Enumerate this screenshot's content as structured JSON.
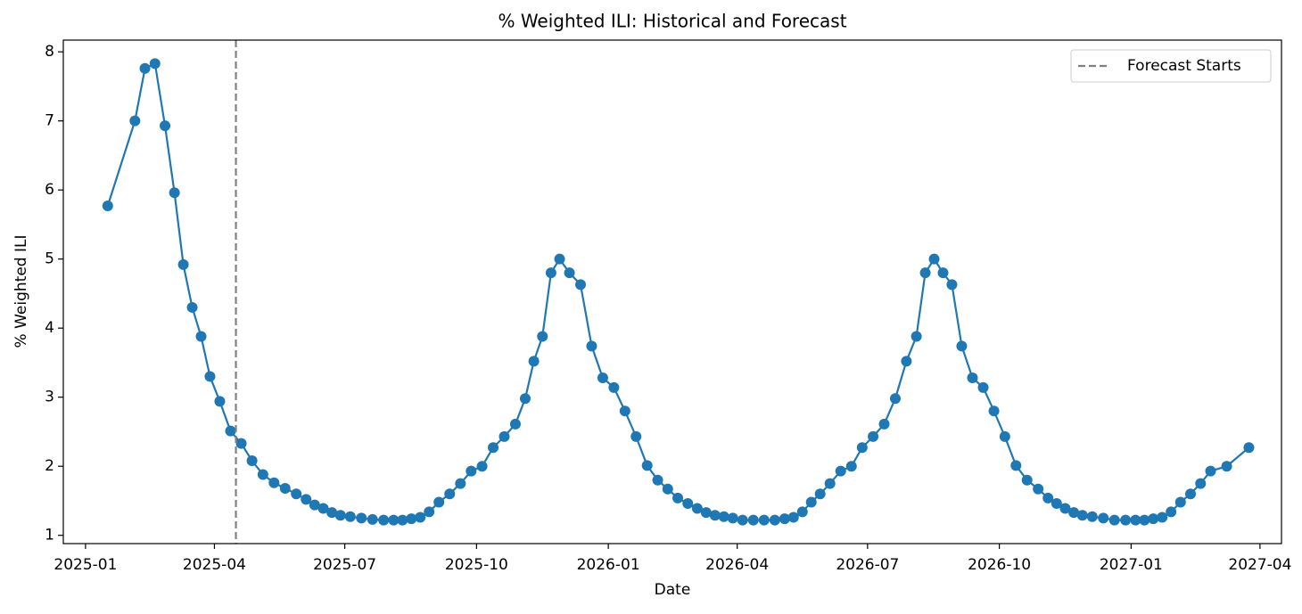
{
  "chart_data": {
    "type": "line",
    "title": "% Weighted ILI: Historical and Forecast",
    "x_label": "Date",
    "y_label": "% Weighted ILI",
    "x": [
      "2025-01",
      "2025-02",
      "2025-02",
      "2025-02",
      "2025-02",
      "2025-03",
      "2025-03",
      "2025-03",
      "2025-03",
      "2025-03",
      "2025-04",
      "2025-04",
      "2025-04",
      "2025-04",
      "2025-05",
      "2025-05",
      "2025-05",
      "2025-05",
      "2025-06",
      "2025-06",
      "2025-06",
      "2025-06",
      "2025-06",
      "2025-07",
      "2025-07",
      "2025-07",
      "2025-07",
      "2025-08",
      "2025-08",
      "2025-08",
      "2025-08",
      "2025-08",
      "2025-09",
      "2025-09",
      "2025-09",
      "2025-09",
      "2025-10",
      "2025-10",
      "2025-10",
      "2025-10",
      "2025-11",
      "2025-11",
      "2025-11",
      "2025-11",
      "2025-11",
      "2025-12",
      "2025-12",
      "2025-12",
      "2025-12",
      "2026-01",
      "2026-01",
      "2026-01",
      "2026-01",
      "2026-02",
      "2026-02",
      "2026-02",
      "2026-02",
      "2026-03",
      "2026-03",
      "2026-03",
      "2026-03",
      "2026-03",
      "2026-04",
      "2026-04",
      "2026-04",
      "2026-04",
      "2026-05",
      "2026-05",
      "2026-05",
      "2026-05",
      "2026-05",
      "2026-06",
      "2026-06",
      "2026-06",
      "2026-06",
      "2026-07",
      "2026-07",
      "2026-07",
      "2026-07",
      "2026-08",
      "2026-08",
      "2026-08",
      "2026-08",
      "2026-08",
      "2026-09",
      "2026-09",
      "2026-09",
      "2026-09",
      "2026-10",
      "2026-10",
      "2026-10",
      "2026-10",
      "2026-11",
      "2026-11",
      "2026-11",
      "2026-11",
      "2026-11",
      "2026-12",
      "2026-12",
      "2026-12",
      "2026-12",
      "2027-01",
      "2027-01",
      "2027-01",
      "2027-01",
      "2027-01",
      "2027-02",
      "2027-02",
      "2027-02",
      "2027-02",
      "2027-03",
      "2027-03"
    ],
    "series": [
      {
        "color": "#1f77b4",
        "values": [
          5.77,
          7.0,
          7.76,
          7.83,
          6.93,
          5.96,
          4.92,
          4.3,
          3.88,
          3.3,
          2.94,
          2.51,
          2.33,
          2.08,
          1.88,
          1.76,
          1.68,
          1.6,
          1.52,
          1.44,
          1.39,
          1.33,
          1.29,
          1.27,
          1.25,
          1.23,
          1.22,
          1.22,
          1.22,
          1.24,
          1.26,
          1.34,
          1.48,
          1.6,
          1.75,
          1.93,
          2.0,
          2.27,
          2.43,
          2.61,
          2.98,
          3.52,
          3.88,
          4.8,
          5.0,
          4.8,
          4.63,
          3.74,
          3.28,
          3.14,
          2.8,
          2.43,
          2.01,
          1.8,
          1.67,
          1.54,
          1.46,
          1.39,
          1.33,
          1.29,
          1.27,
          1.25,
          1.22,
          1.22,
          1.22,
          1.22,
          1.24,
          1.26,
          1.34,
          1.48,
          1.6,
          1.75,
          1.93,
          2.0,
          2.27,
          2.43,
          2.61,
          2.98,
          3.52,
          3.88,
          4.8,
          5.0,
          4.8,
          4.63,
          3.74,
          3.28,
          3.14,
          2.8,
          2.43,
          2.01,
          1.8,
          1.67,
          1.54,
          1.46,
          1.39,
          1.33,
          1.29,
          1.27,
          1.25,
          1.22,
          1.22,
          1.22,
          1.22,
          1.24,
          1.26,
          1.34,
          1.48,
          1.6,
          1.75,
          1.93,
          2.0,
          2.27
        ]
      }
    ],
    "vline": {
      "x": "2025-04",
      "label": "Forecast Starts",
      "color": "#808080"
    },
    "legend": "upper right",
    "xlim": [
      "2024-12",
      "2027-04"
    ],
    "xticks": [
      "2025-01",
      "2025-04",
      "2025-07",
      "2025-10",
      "2026-01",
      "2026-04",
      "2026-07",
      "2026-10",
      "2027-01",
      "2027-04"
    ],
    "ylim": [
      0.88,
      8.17
    ],
    "yticks": [
      1,
      2,
      3,
      4,
      5,
      6,
      7,
      8
    ]
  }
}
